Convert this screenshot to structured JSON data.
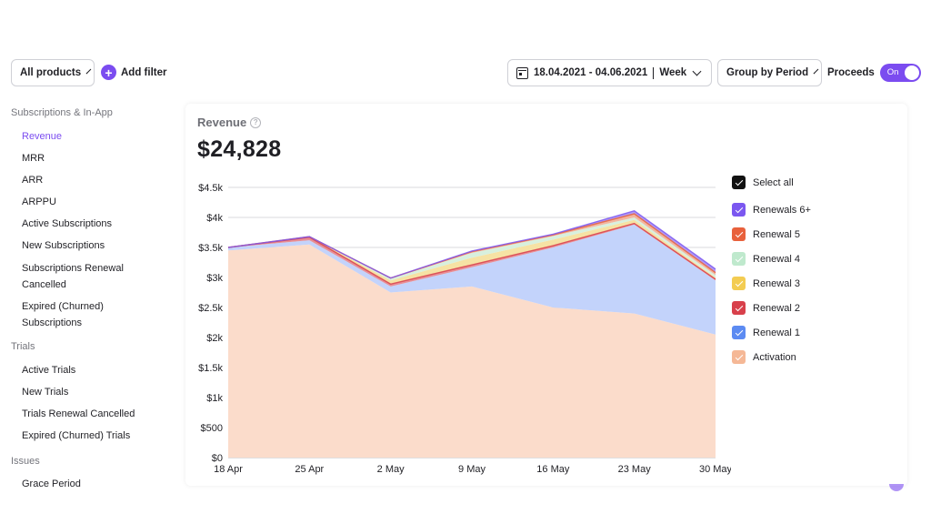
{
  "toolbar": {
    "products_label": "All products",
    "add_filter_label": "Add filter",
    "date_range_label": "18.04.2021 - 04.06.2021",
    "period_label": "Week",
    "group_by_label": "Group by Period",
    "proceeds_label": "Proceeds",
    "proceeds_toggle_label": "On"
  },
  "sidebar": {
    "sections": [
      {
        "title": "Subscriptions & In-App",
        "items": [
          "Revenue",
          "MRR",
          "ARR",
          "ARPPU",
          "Active Subscriptions",
          "New Subscriptions",
          "Subscriptions Renewal Cancelled",
          "Expired (Churned) Subscriptions"
        ]
      },
      {
        "title": "Trials",
        "items": [
          "Active Trials",
          "New Trials",
          "Trials Renewal Cancelled",
          "Expired (Churned) Trials"
        ]
      },
      {
        "title": "Issues",
        "items": [
          "Grace Period"
        ]
      }
    ],
    "active_item": "Revenue"
  },
  "card": {
    "title": "Revenue",
    "total": "$24,828"
  },
  "legend": {
    "select_all": "Select all",
    "items": [
      {
        "label": "Renewals 6+",
        "color": "#7b57f0"
      },
      {
        "label": "Renewal 5",
        "color": "#e8613c"
      },
      {
        "label": "Renewal 4",
        "color": "#bfe9cd"
      },
      {
        "label": "Renewal 3",
        "color": "#f3cc52"
      },
      {
        "label": "Renewal 2",
        "color": "#d8404b"
      },
      {
        "label": "Renewal 1",
        "color": "#5c8bf2"
      },
      {
        "label": "Activation",
        "color": "#f5b896"
      }
    ]
  },
  "chart_data": {
    "type": "area",
    "stacked": true,
    "title": "Revenue",
    "x": [
      "18 Apr",
      "25 Apr",
      "2 May",
      "9 May",
      "16 May",
      "23 May",
      "30 May"
    ],
    "ylim": [
      0,
      4500
    ],
    "yticks": [
      "$0",
      "$500",
      "$1k",
      "$1.5k",
      "$2k",
      "$2.5k",
      "$3k",
      "$3.5k",
      "$4k",
      "$4.5k"
    ],
    "series": [
      {
        "name": "Activation",
        "color": "#fbdccb",
        "values": [
          3450,
          3550,
          2750,
          2850,
          2500,
          2400,
          2050
        ]
      },
      {
        "name": "Renewal 1",
        "color": "#c3d3fb",
        "values": [
          50,
          70,
          100,
          320,
          1000,
          1480,
          900
        ]
      },
      {
        "name": "Renewal 2",
        "color": "#e88f95",
        "values": [
          0,
          50,
          40,
          40,
          30,
          20,
          20
        ]
      },
      {
        "name": "Renewal 3",
        "color": "#f6e2a4",
        "values": [
          0,
          10,
          60,
          120,
          100,
          60,
          30
        ]
      },
      {
        "name": "Renewal 4",
        "color": "#d8f0de",
        "values": [
          0,
          0,
          30,
          80,
          60,
          40,
          40
        ]
      },
      {
        "name": "Renewal 5",
        "color": "#f3b59f",
        "values": [
          0,
          0,
          10,
          20,
          20,
          60,
          40
        ]
      },
      {
        "name": "Renewals 6+",
        "color": "#b19af5",
        "values": [
          0,
          0,
          0,
          10,
          10,
          50,
          60
        ]
      }
    ],
    "grid": true
  }
}
